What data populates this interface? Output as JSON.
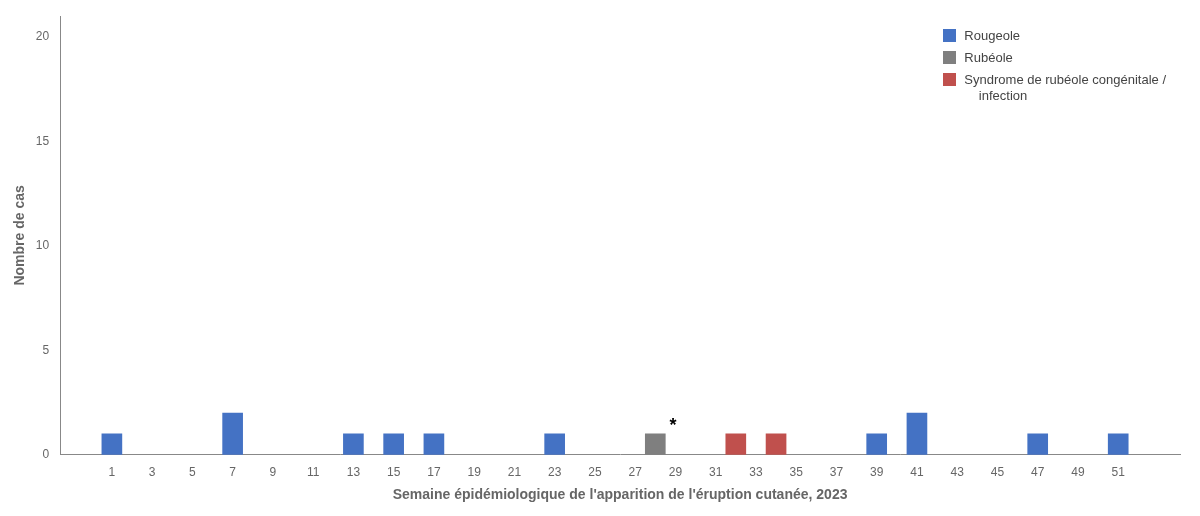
{
  "chart_data": {
    "type": "bar",
    "xlabel": "Semaine épidémiologique de l'apparition de l'éruption cutanée, 2023",
    "ylabel": "Nombre de cas",
    "series": [
      {
        "name": "Rougeole",
        "color": "#4472C4",
        "x": [
          1,
          7,
          13,
          15,
          17,
          23,
          39,
          41,
          47,
          51
        ],
        "values": [
          1,
          2,
          1,
          1,
          1,
          1,
          1,
          2,
          1,
          1
        ]
      },
      {
        "name": "Rubéole",
        "color": "#7F7F7F",
        "x": [
          28
        ],
        "values": [
          1
        ]
      },
      {
        "name": "Syndrome de rubéole congénitale /\n    infection",
        "color": "#C0504D",
        "x": [
          32,
          34
        ],
        "values": [
          1,
          1
        ]
      }
    ],
    "xlim": [
      -0.5,
      53
    ],
    "xticks": [
      1,
      3,
      5,
      7,
      9,
      11,
      13,
      15,
      17,
      19,
      21,
      23,
      25,
      27,
      29,
      31,
      33,
      35,
      37,
      39,
      41,
      43,
      45,
      47,
      49,
      51
    ],
    "ylim": [
      0,
      21
    ],
    "yticks": [
      0,
      5,
      10,
      15,
      20
    ],
    "grid": false,
    "legend": "upper right",
    "annotations": [
      {
        "text": "*",
        "x": 28.7,
        "y": 0.95
      }
    ]
  }
}
